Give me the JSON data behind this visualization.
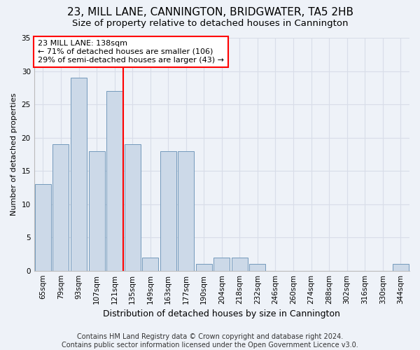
{
  "title": "23, MILL LANE, CANNINGTON, BRIDGWATER, TA5 2HB",
  "subtitle": "Size of property relative to detached houses in Cannington",
  "xlabel": "Distribution of detached houses by size in Cannington",
  "ylabel": "Number of detached properties",
  "categories": [
    "65sqm",
    "79sqm",
    "93sqm",
    "107sqm",
    "121sqm",
    "135sqm",
    "149sqm",
    "163sqm",
    "177sqm",
    "190sqm",
    "204sqm",
    "218sqm",
    "232sqm",
    "246sqm",
    "260sqm",
    "274sqm",
    "288sqm",
    "302sqm",
    "316sqm",
    "330sqm",
    "344sqm"
  ],
  "values": [
    13,
    19,
    29,
    18,
    27,
    19,
    2,
    18,
    18,
    1,
    2,
    2,
    1,
    0,
    0,
    0,
    0,
    0,
    0,
    0,
    1
  ],
  "bar_color": "#ccd9e8",
  "bar_edge_color": "#7399bb",
  "redline_x": 4.5,
  "ylim": [
    0,
    35
  ],
  "yticks": [
    0,
    5,
    10,
    15,
    20,
    25,
    30,
    35
  ],
  "annotation_text": "23 MILL LANE: 138sqm\n← 71% of detached houses are smaller (106)\n29% of semi-detached houses are larger (43) →",
  "footer": "Contains HM Land Registry data © Crown copyright and database right 2024.\nContains public sector information licensed under the Open Government Licence v3.0.",
  "background_color": "#eef2f8",
  "plot_bg_color": "#eef2f8",
  "grid_color": "#d8dde8",
  "title_fontsize": 11,
  "subtitle_fontsize": 9.5,
  "xlabel_fontsize": 9,
  "ylabel_fontsize": 8,
  "tick_fontsize": 7.5,
  "footer_fontsize": 7
}
